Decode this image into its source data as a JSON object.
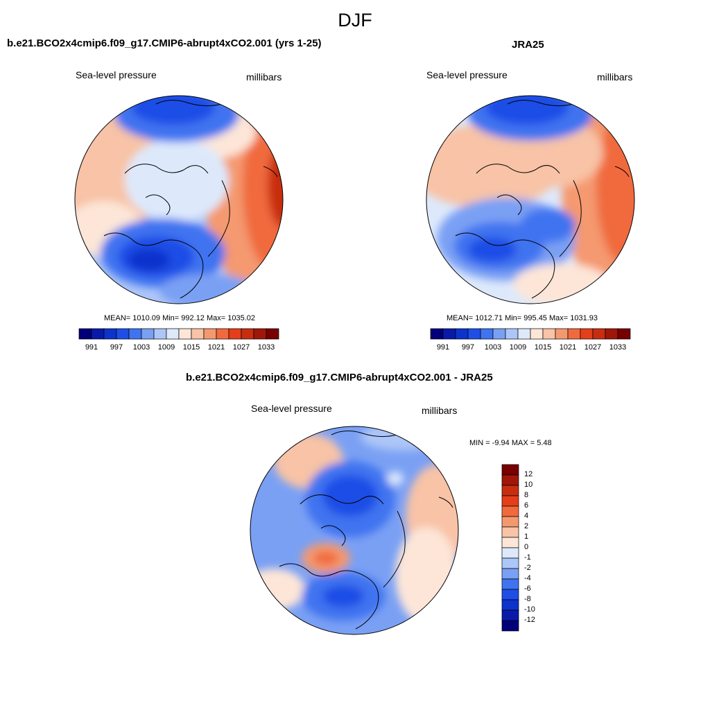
{
  "figure": {
    "title": "DJF"
  },
  "colors": {
    "abs_scale": [
      "#00007a",
      "#0a1aa8",
      "#0c33cc",
      "#1e4ee6",
      "#3f73f0",
      "#7aa0f4",
      "#adc6f8",
      "#dde9fb",
      "#fde6d8",
      "#f8c3a6",
      "#f4996f",
      "#f06a3e",
      "#e43f1a",
      "#c82d10",
      "#a01708",
      "#780000"
    ],
    "diff_scale": [
      "#00007a",
      "#0a1aa8",
      "#0c33cc",
      "#1e4ee6",
      "#3f73f0",
      "#7aa0f4",
      "#adc6f8",
      "#dde9fb",
      "#fde6d8",
      "#f8c3a6",
      "#f4996f",
      "#f06a3e",
      "#e43f1a",
      "#c82d10",
      "#a01708",
      "#780000"
    ]
  },
  "panels": {
    "model": {
      "title": "b.e21.BCO2x4cmip6.f09_g17.CMIP6-abrupt4xCO2.001 (yrs 1-25)",
      "variable": "Sea-level pressure",
      "units": "millibars",
      "stats": "MEAN= 1010.09  Min= 992.12  Max= 1035.02",
      "colorbar_ticks": [
        "991",
        "997",
        "1003",
        "1009",
        "1015",
        "1021",
        "1027",
        "1033"
      ]
    },
    "obs": {
      "title": "JRA25",
      "variable": "Sea-level pressure",
      "units": "millibars",
      "stats": "MEAN= 1012.71  Min= 995.45  Max= 1031.93",
      "colorbar_ticks": [
        "991",
        "997",
        "1003",
        "1009",
        "1015",
        "1021",
        "1027",
        "1033"
      ]
    },
    "diff": {
      "title": "b.e21.BCO2x4cmip6.f09_g17.CMIP6-abrupt4xCO2.001 - JRA25",
      "variable": "Sea-level pressure",
      "units": "millibars",
      "stats": "MIN =  -9.94 MAX =   5.48",
      "colorbar_ticks": [
        "12",
        "10",
        "8",
        "6",
        "4",
        "2",
        "1",
        "0",
        "-1",
        "-2",
        "-4",
        "-6",
        "-8",
        "-10",
        "-12"
      ]
    }
  }
}
